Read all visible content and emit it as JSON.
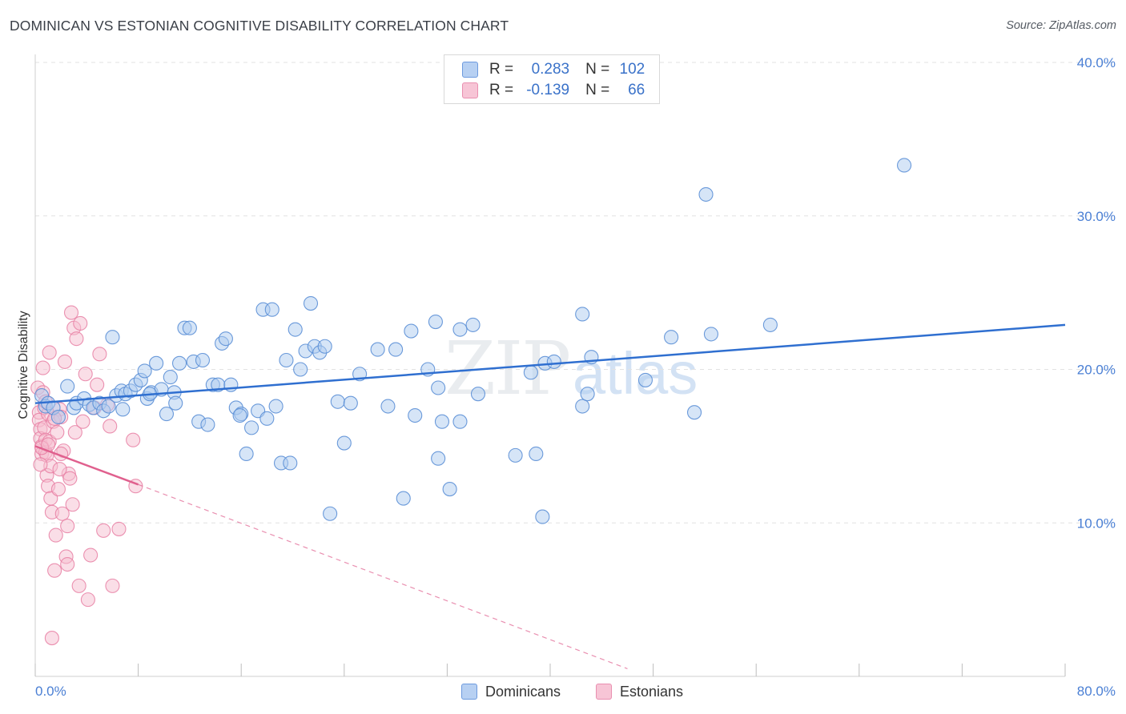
{
  "title": "DOMINICAN VS ESTONIAN COGNITIVE DISABILITY CORRELATION CHART",
  "source": "Source: ZipAtlas.com",
  "watermark": "ZIPatlas",
  "legend": {
    "rows": [
      {
        "r_label": "R =",
        "r_value": "0.283",
        "n_label": "N =",
        "n_value": "102"
      },
      {
        "r_label": "R =",
        "r_value": "-0.139",
        "n_label": "N =",
        "n_value": "66"
      }
    ]
  },
  "bottom_legend": [
    "Dominicans",
    "Estonians"
  ],
  "colors": {
    "blue_fill": "#aecbf0",
    "blue_stroke": "#5b8fd6",
    "blue_line": "#2f6fd0",
    "pink_fill": "#f6bdd0",
    "pink_stroke": "#e87fa3",
    "pink_line": "#e0608e",
    "tick_text": "#4a7fd4",
    "grid": "#e2e2e2"
  },
  "chart_data": {
    "type": "scatter",
    "title": "DOMINICAN VS ESTONIAN COGNITIVE DISABILITY CORRELATION CHART",
    "xlabel": "",
    "ylabel": "Cognitive Disability",
    "xlim": [
      0,
      80
    ],
    "ylim": [
      0,
      40
    ],
    "x_tick_labels": [
      "0.0%",
      "80.0%"
    ],
    "y_ticks": [
      10,
      20,
      30,
      40
    ],
    "y_tick_labels": [
      "10.0%",
      "20.0%",
      "30.0%",
      "40.0%"
    ],
    "grid": true,
    "legend_position": "top-center",
    "series": [
      {
        "name": "Dominicans",
        "r": 0.283,
        "n": 102,
        "trend": {
          "x": [
            0,
            80
          ],
          "y": [
            17.8,
            22.9
          ]
        },
        "points": [
          [
            0.5,
            18.3
          ],
          [
            0.8,
            17.6
          ],
          [
            1.0,
            17.8
          ],
          [
            1.4,
            17.5
          ],
          [
            1.8,
            16.9
          ],
          [
            2.5,
            18.9
          ],
          [
            3.0,
            17.5
          ],
          [
            3.2,
            17.8
          ],
          [
            3.8,
            18.1
          ],
          [
            4.2,
            17.7
          ],
          [
            4.5,
            17.5
          ],
          [
            5.0,
            17.8
          ],
          [
            5.3,
            17.3
          ],
          [
            5.7,
            17.6
          ],
          [
            6.0,
            22.1
          ],
          [
            6.3,
            18.3
          ],
          [
            6.7,
            18.6
          ],
          [
            7.0,
            18.4
          ],
          [
            7.4,
            18.6
          ],
          [
            7.8,
            19.0
          ],
          [
            8.2,
            19.3
          ],
          [
            8.5,
            19.9
          ],
          [
            8.7,
            18.1
          ],
          [
            9.0,
            18.5
          ],
          [
            9.4,
            20.4
          ],
          [
            9.8,
            18.7
          ],
          [
            10.2,
            17.1
          ],
          [
            10.5,
            19.5
          ],
          [
            10.8,
            18.5
          ],
          [
            11.2,
            20.4
          ],
          [
            11.6,
            22.7
          ],
          [
            12.0,
            22.7
          ],
          [
            12.3,
            20.5
          ],
          [
            12.7,
            16.6
          ],
          [
            13.0,
            20.6
          ],
          [
            13.4,
            16.4
          ],
          [
            13.8,
            19.0
          ],
          [
            14.2,
            19.0
          ],
          [
            14.5,
            21.7
          ],
          [
            14.8,
            22.0
          ],
          [
            15.2,
            19.0
          ],
          [
            15.6,
            17.5
          ],
          [
            16.0,
            17.1
          ],
          [
            16.4,
            14.5
          ],
          [
            16.8,
            16.2
          ],
          [
            17.3,
            17.3
          ],
          [
            17.7,
            23.9
          ],
          [
            18.0,
            16.8
          ],
          [
            18.4,
            23.9
          ],
          [
            18.7,
            17.6
          ],
          [
            19.1,
            13.9
          ],
          [
            19.5,
            20.6
          ],
          [
            19.8,
            13.9
          ],
          [
            20.2,
            22.6
          ],
          [
            20.6,
            20.0
          ],
          [
            21.0,
            21.2
          ],
          [
            21.4,
            24.3
          ],
          [
            21.7,
            21.5
          ],
          [
            22.1,
            21.1
          ],
          [
            22.5,
            21.5
          ],
          [
            22.9,
            10.6
          ],
          [
            23.5,
            17.9
          ],
          [
            24.0,
            15.2
          ],
          [
            24.5,
            17.8
          ],
          [
            25.2,
            19.7
          ],
          [
            26.6,
            21.3
          ],
          [
            27.4,
            17.6
          ],
          [
            28.0,
            21.3
          ],
          [
            28.6,
            11.6
          ],
          [
            29.2,
            22.5
          ],
          [
            29.5,
            17.0
          ],
          [
            30.5,
            20.0
          ],
          [
            31.1,
            23.1
          ],
          [
            31.3,
            18.8
          ],
          [
            31.3,
            14.2
          ],
          [
            31.6,
            16.6
          ],
          [
            32.2,
            12.2
          ],
          [
            33.0,
            22.6
          ],
          [
            33.0,
            16.6
          ],
          [
            34.0,
            22.9
          ],
          [
            34.4,
            18.4
          ],
          [
            37.3,
            14.4
          ],
          [
            38.5,
            19.8
          ],
          [
            38.9,
            14.5
          ],
          [
            39.4,
            10.4
          ],
          [
            39.6,
            20.4
          ],
          [
            40.3,
            20.5
          ],
          [
            42.5,
            17.6
          ],
          [
            42.5,
            23.6
          ],
          [
            42.9,
            18.4
          ],
          [
            43.2,
            20.8
          ],
          [
            47.4,
            19.3
          ],
          [
            49.4,
            22.1
          ],
          [
            51.2,
            17.2
          ],
          [
            52.1,
            31.4
          ],
          [
            52.5,
            22.3
          ],
          [
            57.1,
            22.9
          ],
          [
            67.5,
            33.3
          ],
          [
            6.8,
            17.4
          ],
          [
            8.9,
            18.4
          ],
          [
            10.9,
            17.8
          ],
          [
            15.9,
            17.0
          ]
        ]
      },
      {
        "name": "Estonians",
        "r": -0.139,
        "n": 66,
        "trend": {
          "x": [
            0,
            8
          ],
          "y": [
            15.0,
            12.5
          ]
        },
        "trend_extended": {
          "x": [
            8,
            46
          ],
          "y": [
            12.5,
            0.5
          ]
        },
        "points": [
          [
            0.2,
            18.8
          ],
          [
            0.3,
            17.2
          ],
          [
            0.3,
            16.7
          ],
          [
            0.4,
            16.1
          ],
          [
            0.4,
            15.5
          ],
          [
            0.5,
            15.0
          ],
          [
            0.5,
            14.5
          ],
          [
            0.6,
            20.1
          ],
          [
            0.6,
            18.5
          ],
          [
            0.7,
            17.5
          ],
          [
            0.7,
            16.2
          ],
          [
            0.8,
            15.4
          ],
          [
            0.8,
            14.6
          ],
          [
            0.9,
            13.1
          ],
          [
            0.9,
            14.4
          ],
          [
            1.0,
            12.4
          ],
          [
            1.0,
            17.1
          ],
          [
            1.1,
            21.1
          ],
          [
            1.1,
            15.3
          ],
          [
            1.2,
            11.6
          ],
          [
            1.2,
            13.7
          ],
          [
            1.3,
            10.7
          ],
          [
            1.4,
            16.6
          ],
          [
            1.5,
            6.9
          ],
          [
            1.6,
            9.2
          ],
          [
            1.7,
            15.9
          ],
          [
            1.8,
            12.2
          ],
          [
            1.9,
            17.4
          ],
          [
            2.0,
            16.9
          ],
          [
            2.1,
            10.6
          ],
          [
            2.2,
            14.7
          ],
          [
            2.3,
            20.5
          ],
          [
            2.4,
            7.8
          ],
          [
            2.5,
            7.3
          ],
          [
            2.6,
            13.2
          ],
          [
            2.7,
            12.9
          ],
          [
            2.8,
            23.7
          ],
          [
            2.9,
            11.2
          ],
          [
            3.0,
            22.7
          ],
          [
            3.1,
            15.9
          ],
          [
            3.2,
            22.0
          ],
          [
            3.4,
            5.9
          ],
          [
            3.5,
            23.0
          ],
          [
            3.7,
            16.6
          ],
          [
            3.9,
            19.7
          ],
          [
            4.1,
            5.0
          ],
          [
            4.3,
            7.9
          ],
          [
            4.6,
            17.5
          ],
          [
            4.8,
            19.0
          ],
          [
            5.0,
            21.0
          ],
          [
            5.3,
            9.5
          ],
          [
            5.6,
            17.7
          ],
          [
            5.8,
            16.3
          ],
          [
            6.0,
            5.9
          ],
          [
            6.5,
            9.6
          ],
          [
            7.6,
            15.4
          ],
          [
            7.8,
            12.4
          ],
          [
            1.3,
            2.5
          ],
          [
            0.5,
            14.9
          ],
          [
            1.0,
            15.1
          ],
          [
            1.5,
            16.8
          ],
          [
            2.0,
            14.5
          ],
          [
            0.8,
            17.9
          ],
          [
            1.9,
            13.5
          ],
          [
            2.5,
            9.8
          ],
          [
            0.4,
            13.8
          ]
        ]
      }
    ]
  }
}
